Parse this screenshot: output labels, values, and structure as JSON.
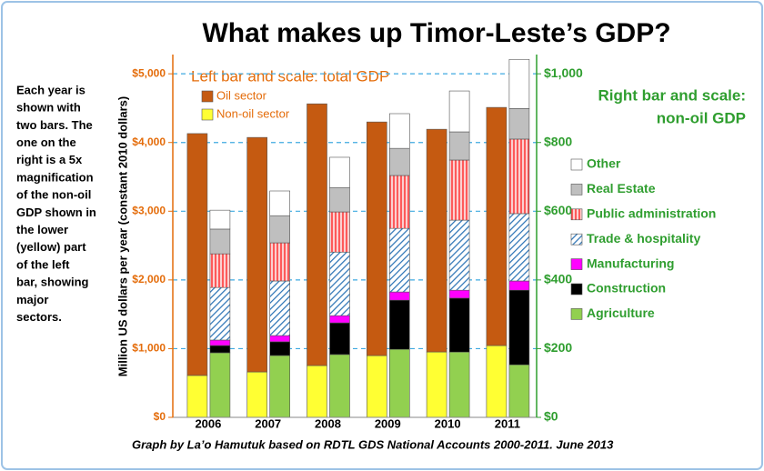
{
  "chart_data": {
    "type": "bar",
    "title": "What makes up Timor-Leste’s GDP?",
    "annotation": [
      "Each year is",
      "shown with",
      "two bars. The",
      "one on the",
      "right is a 5x",
      "magnification",
      "of the non-oil",
      "GDP shown in",
      "the lower",
      "(yellow) part",
      "of the left",
      "bar, showing",
      "major",
      "sectors."
    ],
    "left_heading": "Left bar and scale: total GDP",
    "right_heading": [
      "Right bar and scale:",
      "non-oil GDP"
    ],
    "ylabel": "Million US dollars per year (constant 2010 dollars)",
    "source": "Graph by La’o Hamutuk based on RDTL GDS National Accounts 2000-2011.  June 2013",
    "categories": [
      "2006",
      "2007",
      "2008",
      "2009",
      "2010",
      "2011"
    ],
    "series": [
      {
        "name": "Oil sector",
        "color": "#c55a11",
        "axis": "y",
        "values": [
          3520,
          3413,
          3809,
          3400,
          3241,
          3466
        ]
      },
      {
        "name": "Non-oil sector",
        "color": "#ffff33",
        "axis": "y",
        "values": [
          610,
          661,
          754,
          899,
          952,
          1045
        ]
      },
      {
        "name": "Other",
        "color": "#ffffff",
        "axis": "y2",
        "values": [
          55,
          72,
          88,
          101,
          119,
          143
        ]
      },
      {
        "name": "Real Estate",
        "color": "#bfbfbf",
        "axis": "y2",
        "values": [
          72,
          79,
          71,
          79,
          82,
          89
        ]
      },
      {
        "name": "Public administration",
        "color": "#ff3333",
        "hatch": "vertical",
        "axis": "y2",
        "values": [
          98,
          111,
          117,
          154,
          175,
          217
        ]
      },
      {
        "name": "Trade & hospitality",
        "color": "#2e75b6",
        "hatch": "diagonal",
        "axis": "y2",
        "values": [
          153,
          159,
          185,
          185,
          204,
          196
        ]
      },
      {
        "name": "Manufacturing",
        "color": "#ff00ff",
        "axis": "y2",
        "values": [
          16,
          18,
          21,
          24,
          23,
          27
        ]
      },
      {
        "name": "Construction",
        "color": "#000000",
        "axis": "y2",
        "values": [
          21,
          40,
          92,
          143,
          157,
          217
        ]
      },
      {
        "name": "Agriculture",
        "color": "#92d050",
        "axis": "y2",
        "values": [
          188,
          180,
          183,
          198,
          190,
          153
        ]
      }
    ],
    "ylim": [
      0,
      5280
    ],
    "yticks": [
      {
        "value": 0,
        "label": "$0"
      },
      {
        "value": 1000,
        "label": "$1,000"
      },
      {
        "value": 2000,
        "label": "$2,000"
      },
      {
        "value": 3000,
        "label": "$3,000"
      },
      {
        "value": 4000,
        "label": "$4,000"
      },
      {
        "value": 5000,
        "label": "$5,000"
      }
    ],
    "y2lim": [
      0,
      1056
    ],
    "y2ticks": [
      {
        "value": 0,
        "label": "$0"
      },
      {
        "value": 200,
        "label": "$200"
      },
      {
        "value": 400,
        "label": "$400"
      },
      {
        "value": 600,
        "label": "$600"
      },
      {
        "value": 800,
        "label": "$800"
      },
      {
        "value": 1000,
        "label": "$1,000"
      }
    ],
    "grid": true,
    "ycolor": "#e46c0a",
    "y2color": "#2f9e2f"
  }
}
